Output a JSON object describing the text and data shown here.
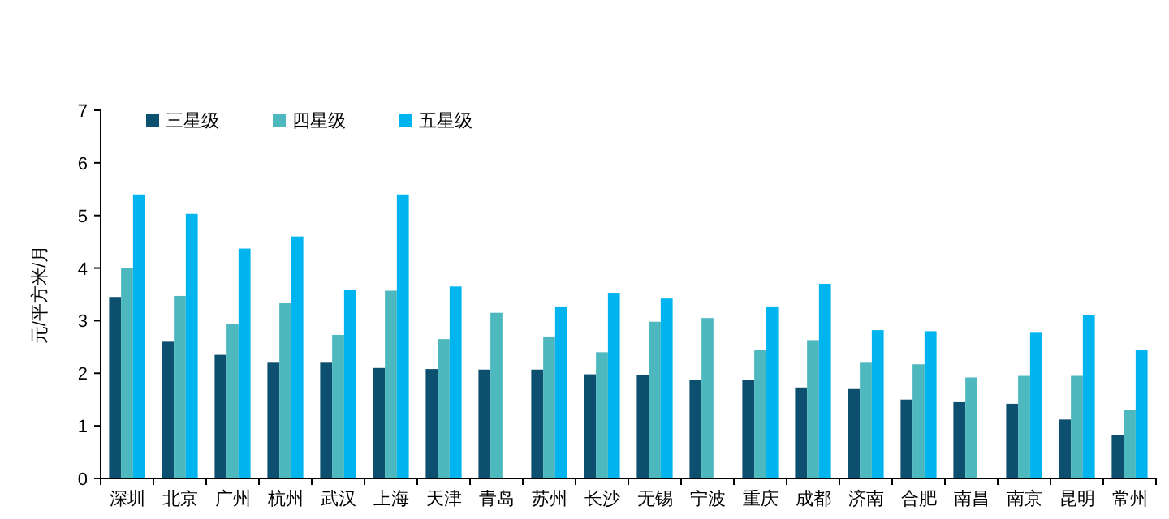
{
  "chart_data": {
    "type": "bar",
    "ylabel": "元/平方米/月",
    "categories": [
      "深圳",
      "北京",
      "广州",
      "杭州",
      "武汉",
      "上海",
      "天津",
      "青岛",
      "苏州",
      "长沙",
      "无锡",
      "宁波",
      "重庆",
      "成都",
      "济南",
      "合肥",
      "南昌",
      "南京",
      "昆明",
      "常州"
    ],
    "series": [
      {
        "name": "三星级",
        "color": "#0d4f6e",
        "values": [
          3.45,
          2.6,
          2.35,
          2.2,
          2.2,
          2.1,
          2.08,
          2.07,
          2.07,
          1.98,
          1.97,
          1.88,
          1.87,
          1.73,
          1.7,
          1.5,
          1.45,
          1.42,
          1.12,
          0.83
        ]
      },
      {
        "name": "四星级",
        "color": "#4db8bd",
        "values": [
          4.0,
          3.47,
          2.93,
          3.33,
          2.73,
          3.57,
          2.65,
          3.15,
          2.7,
          2.4,
          2.98,
          3.05,
          2.45,
          2.63,
          2.2,
          2.17,
          1.92,
          1.95,
          1.95,
          1.3
        ]
      },
      {
        "name": "五星级",
        "color": "#00b4ef",
        "values": [
          5.4,
          5.03,
          4.37,
          4.6,
          3.58,
          5.4,
          3.65,
          null,
          3.27,
          3.53,
          3.42,
          null,
          3.27,
          3.7,
          2.82,
          2.8,
          null,
          2.77,
          3.1,
          2.45
        ]
      }
    ],
    "ylim": [
      0,
      7
    ],
    "yticks": [
      0,
      1,
      2,
      3,
      4,
      5,
      6,
      7
    ],
    "grid": false,
    "legend": "top left"
  }
}
